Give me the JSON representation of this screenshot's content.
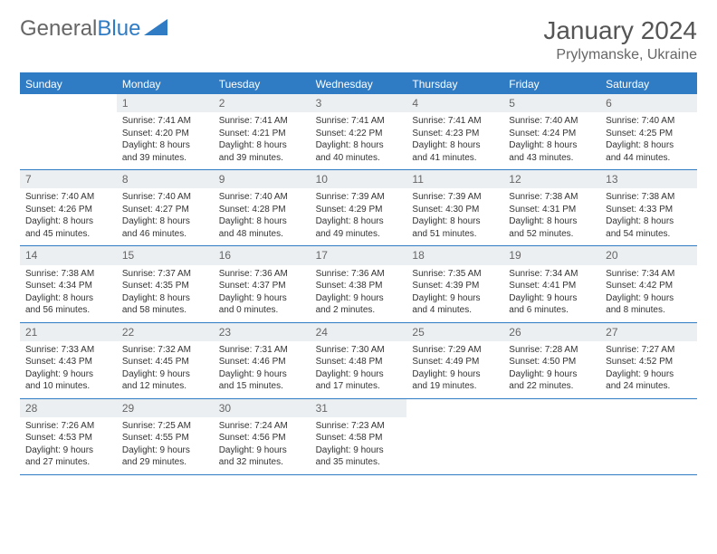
{
  "brand": {
    "part1": "General",
    "part2": "Blue"
  },
  "title": "January 2024",
  "location": "Prylymanske, Ukraine",
  "colors": {
    "accent": "#2f7bc4",
    "header_bg": "#2f7bc4",
    "header_text": "#ffffff",
    "daynum_bg": "#eceff1",
    "text": "#333333"
  },
  "typography": {
    "title_fontsize": 28,
    "location_fontsize": 16,
    "dayname_fontsize": 12,
    "cell_fontsize": 10
  },
  "day_names": [
    "Sunday",
    "Monday",
    "Tuesday",
    "Wednesday",
    "Thursday",
    "Friday",
    "Saturday"
  ],
  "weeks": [
    [
      {
        "day": "",
        "lines": []
      },
      {
        "day": "1",
        "lines": [
          "Sunrise: 7:41 AM",
          "Sunset: 4:20 PM",
          "Daylight: 8 hours",
          "and 39 minutes."
        ]
      },
      {
        "day": "2",
        "lines": [
          "Sunrise: 7:41 AM",
          "Sunset: 4:21 PM",
          "Daylight: 8 hours",
          "and 39 minutes."
        ]
      },
      {
        "day": "3",
        "lines": [
          "Sunrise: 7:41 AM",
          "Sunset: 4:22 PM",
          "Daylight: 8 hours",
          "and 40 minutes."
        ]
      },
      {
        "day": "4",
        "lines": [
          "Sunrise: 7:41 AM",
          "Sunset: 4:23 PM",
          "Daylight: 8 hours",
          "and 41 minutes."
        ]
      },
      {
        "day": "5",
        "lines": [
          "Sunrise: 7:40 AM",
          "Sunset: 4:24 PM",
          "Daylight: 8 hours",
          "and 43 minutes."
        ]
      },
      {
        "day": "6",
        "lines": [
          "Sunrise: 7:40 AM",
          "Sunset: 4:25 PM",
          "Daylight: 8 hours",
          "and 44 minutes."
        ]
      }
    ],
    [
      {
        "day": "7",
        "lines": [
          "Sunrise: 7:40 AM",
          "Sunset: 4:26 PM",
          "Daylight: 8 hours",
          "and 45 minutes."
        ]
      },
      {
        "day": "8",
        "lines": [
          "Sunrise: 7:40 AM",
          "Sunset: 4:27 PM",
          "Daylight: 8 hours",
          "and 46 minutes."
        ]
      },
      {
        "day": "9",
        "lines": [
          "Sunrise: 7:40 AM",
          "Sunset: 4:28 PM",
          "Daylight: 8 hours",
          "and 48 minutes."
        ]
      },
      {
        "day": "10",
        "lines": [
          "Sunrise: 7:39 AM",
          "Sunset: 4:29 PM",
          "Daylight: 8 hours",
          "and 49 minutes."
        ]
      },
      {
        "day": "11",
        "lines": [
          "Sunrise: 7:39 AM",
          "Sunset: 4:30 PM",
          "Daylight: 8 hours",
          "and 51 minutes."
        ]
      },
      {
        "day": "12",
        "lines": [
          "Sunrise: 7:38 AM",
          "Sunset: 4:31 PM",
          "Daylight: 8 hours",
          "and 52 minutes."
        ]
      },
      {
        "day": "13",
        "lines": [
          "Sunrise: 7:38 AM",
          "Sunset: 4:33 PM",
          "Daylight: 8 hours",
          "and 54 minutes."
        ]
      }
    ],
    [
      {
        "day": "14",
        "lines": [
          "Sunrise: 7:38 AM",
          "Sunset: 4:34 PM",
          "Daylight: 8 hours",
          "and 56 minutes."
        ]
      },
      {
        "day": "15",
        "lines": [
          "Sunrise: 7:37 AM",
          "Sunset: 4:35 PM",
          "Daylight: 8 hours",
          "and 58 minutes."
        ]
      },
      {
        "day": "16",
        "lines": [
          "Sunrise: 7:36 AM",
          "Sunset: 4:37 PM",
          "Daylight: 9 hours",
          "and 0 minutes."
        ]
      },
      {
        "day": "17",
        "lines": [
          "Sunrise: 7:36 AM",
          "Sunset: 4:38 PM",
          "Daylight: 9 hours",
          "and 2 minutes."
        ]
      },
      {
        "day": "18",
        "lines": [
          "Sunrise: 7:35 AM",
          "Sunset: 4:39 PM",
          "Daylight: 9 hours",
          "and 4 minutes."
        ]
      },
      {
        "day": "19",
        "lines": [
          "Sunrise: 7:34 AM",
          "Sunset: 4:41 PM",
          "Daylight: 9 hours",
          "and 6 minutes."
        ]
      },
      {
        "day": "20",
        "lines": [
          "Sunrise: 7:34 AM",
          "Sunset: 4:42 PM",
          "Daylight: 9 hours",
          "and 8 minutes."
        ]
      }
    ],
    [
      {
        "day": "21",
        "lines": [
          "Sunrise: 7:33 AM",
          "Sunset: 4:43 PM",
          "Daylight: 9 hours",
          "and 10 minutes."
        ]
      },
      {
        "day": "22",
        "lines": [
          "Sunrise: 7:32 AM",
          "Sunset: 4:45 PM",
          "Daylight: 9 hours",
          "and 12 minutes."
        ]
      },
      {
        "day": "23",
        "lines": [
          "Sunrise: 7:31 AM",
          "Sunset: 4:46 PM",
          "Daylight: 9 hours",
          "and 15 minutes."
        ]
      },
      {
        "day": "24",
        "lines": [
          "Sunrise: 7:30 AM",
          "Sunset: 4:48 PM",
          "Daylight: 9 hours",
          "and 17 minutes."
        ]
      },
      {
        "day": "25",
        "lines": [
          "Sunrise: 7:29 AM",
          "Sunset: 4:49 PM",
          "Daylight: 9 hours",
          "and 19 minutes."
        ]
      },
      {
        "day": "26",
        "lines": [
          "Sunrise: 7:28 AM",
          "Sunset: 4:50 PM",
          "Daylight: 9 hours",
          "and 22 minutes."
        ]
      },
      {
        "day": "27",
        "lines": [
          "Sunrise: 7:27 AM",
          "Sunset: 4:52 PM",
          "Daylight: 9 hours",
          "and 24 minutes."
        ]
      }
    ],
    [
      {
        "day": "28",
        "lines": [
          "Sunrise: 7:26 AM",
          "Sunset: 4:53 PM",
          "Daylight: 9 hours",
          "and 27 minutes."
        ]
      },
      {
        "day": "29",
        "lines": [
          "Sunrise: 7:25 AM",
          "Sunset: 4:55 PM",
          "Daylight: 9 hours",
          "and 29 minutes."
        ]
      },
      {
        "day": "30",
        "lines": [
          "Sunrise: 7:24 AM",
          "Sunset: 4:56 PM",
          "Daylight: 9 hours",
          "and 32 minutes."
        ]
      },
      {
        "day": "31",
        "lines": [
          "Sunrise: 7:23 AM",
          "Sunset: 4:58 PM",
          "Daylight: 9 hours",
          "and 35 minutes."
        ]
      },
      {
        "day": "",
        "lines": []
      },
      {
        "day": "",
        "lines": []
      },
      {
        "day": "",
        "lines": []
      }
    ]
  ]
}
